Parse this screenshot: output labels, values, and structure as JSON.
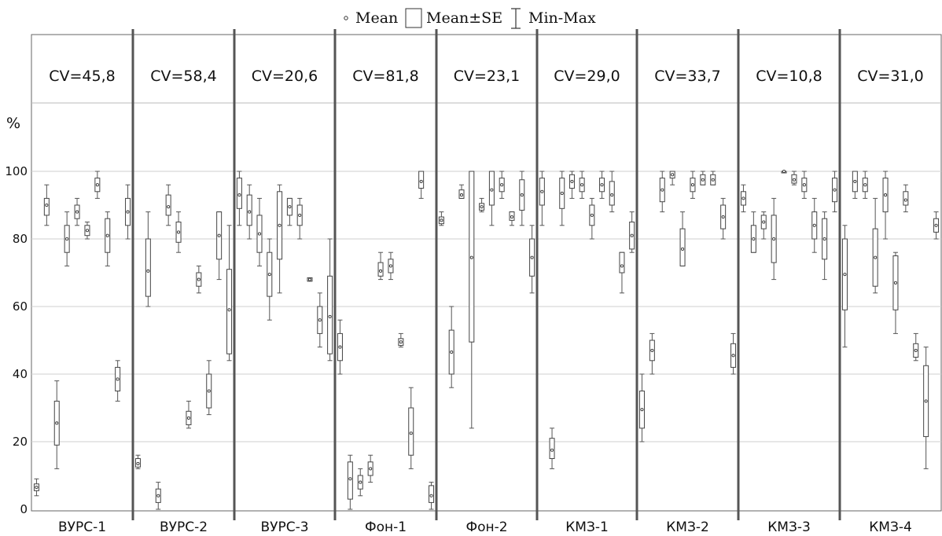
{
  "chart_data": {
    "type": "boxplot",
    "legend": {
      "mean_label": "Mean",
      "se_label": "Mean±SE",
      "minmax_label": "Min-Max",
      "placement": "top-center"
    },
    "y_unit_label": "%",
    "yticks": [
      "0",
      "20",
      "40",
      "60",
      "80",
      "100"
    ],
    "ylim": [
      0,
      120
    ],
    "grid": true,
    "groups": [
      {
        "name": "ВУРС-1",
        "cv": "CV=45,8",
        "boxes": [
          {
            "mean": 6.5,
            "se_low": 5.5,
            "se_high": 7.5,
            "min": 4,
            "max": 9
          },
          {
            "mean": 90,
            "se_low": 87,
            "se_high": 92,
            "min": 84,
            "max": 96
          },
          {
            "mean": 25.5,
            "se_low": 19,
            "se_high": 32,
            "min": 12,
            "max": 38
          },
          {
            "mean": 80,
            "se_low": 76,
            "se_high": 84,
            "min": 72,
            "max": 88
          },
          {
            "mean": 88,
            "se_low": 86,
            "se_high": 90,
            "min": 84,
            "max": 92
          },
          {
            "mean": 82.5,
            "se_low": 81,
            "se_high": 84,
            "min": 80,
            "max": 85
          },
          {
            "mean": 96,
            "se_low": 94,
            "se_high": 98,
            "min": 92,
            "max": 100
          },
          {
            "mean": 81,
            "se_low": 76,
            "se_high": 86,
            "min": 72,
            "max": 88
          },
          {
            "mean": 38.5,
            "se_low": 35,
            "se_high": 42,
            "min": 32,
            "max": 44
          },
          {
            "mean": 88,
            "se_low": 84,
            "se_high": 92,
            "min": 80,
            "max": 96
          }
        ]
      },
      {
        "name": "ВУРС-2",
        "cv": "CV=58,4",
        "boxes": [
          {
            "mean": 13.5,
            "se_low": 12.5,
            "se_high": 15,
            "min": 12,
            "max": 16
          },
          {
            "mean": 70.5,
            "se_low": 63,
            "se_high": 80,
            "min": 60,
            "max": 88
          },
          {
            "mean": 4,
            "se_low": 2,
            "se_high": 6,
            "min": 0,
            "max": 8
          },
          {
            "mean": 89.5,
            "se_low": 87,
            "se_high": 93,
            "min": 84,
            "max": 96
          },
          {
            "mean": 82,
            "se_low": 79,
            "se_high": 85,
            "min": 76,
            "max": 88
          },
          {
            "mean": 27,
            "se_low": 25,
            "se_high": 29,
            "min": 24,
            "max": 32
          },
          {
            "mean": 68,
            "se_low": 66,
            "se_high": 70,
            "min": 64,
            "max": 72
          },
          {
            "mean": 35,
            "se_low": 30,
            "se_high": 40,
            "min": 28,
            "max": 44
          },
          {
            "mean": 81,
            "se_low": 74,
            "se_high": 88,
            "min": 68,
            "max": 88
          },
          {
            "mean": 59,
            "se_low": 46,
            "se_high": 71,
            "min": 44,
            "max": 84
          }
        ]
      },
      {
        "name": "ВУРС-3",
        "cv": "CV=20,6",
        "boxes": [
          {
            "mean": 93,
            "se_low": 89,
            "se_high": 98,
            "min": 84,
            "max": 100
          },
          {
            "mean": 88,
            "se_low": 84,
            "se_high": 93,
            "min": 80,
            "max": 96
          },
          {
            "mean": 81.5,
            "se_low": 76,
            "se_high": 87,
            "min": 72,
            "max": 92
          },
          {
            "mean": 69.5,
            "se_low": 63,
            "se_high": 76,
            "min": 56,
            "max": 80
          },
          {
            "mean": 84,
            "se_low": 74,
            "se_high": 94,
            "min": 64,
            "max": 96
          },
          {
            "mean": 89.5,
            "se_low": 87,
            "se_high": 92,
            "min": 84,
            "max": 92
          },
          {
            "mean": 87,
            "se_low": 84,
            "se_high": 90,
            "min": 80,
            "max": 92
          },
          {
            "mean": 68,
            "se_low": 67.5,
            "se_high": 68.5,
            "min": 67.5,
            "max": 68.5
          },
          {
            "mean": 56,
            "se_low": 52,
            "se_high": 60,
            "min": 48,
            "max": 64
          },
          {
            "mean": 57,
            "se_low": 46,
            "se_high": 69,
            "min": 44,
            "max": 80
          }
        ]
      },
      {
        "name": "Фон-1",
        "cv": "CV=81,8",
        "boxes": [
          {
            "mean": 48,
            "se_low": 44,
            "se_high": 52,
            "min": 40,
            "max": 56
          },
          {
            "mean": 9,
            "se_low": 3,
            "se_high": 14,
            "min": 0,
            "max": 16
          },
          {
            "mean": 8,
            "se_low": 6,
            "se_high": 10,
            "min": 4,
            "max": 12
          },
          {
            "mean": 12,
            "se_low": 10,
            "se_high": 14,
            "min": 8,
            "max": 16
          },
          {
            "mean": 70.5,
            "se_low": 69,
            "se_high": 73,
            "min": 68,
            "max": 76
          },
          {
            "mean": 72,
            "se_low": 70,
            "se_high": 74,
            "min": 68,
            "max": 76
          },
          {
            "mean": 49.5,
            "se_low": 48.5,
            "se_high": 50.5,
            "min": 48,
            "max": 52
          },
          {
            "mean": 22.5,
            "se_low": 16,
            "se_high": 30,
            "min": 12,
            "max": 36
          },
          {
            "mean": 97,
            "se_low": 95,
            "se_high": 100,
            "min": 92,
            "max": 100
          },
          {
            "mean": 4,
            "se_low": 2,
            "se_high": 7,
            "min": 0,
            "max": 8
          }
        ]
      },
      {
        "name": "Фон-2",
        "cv": "CV=23,1",
        "boxes": [
          {
            "mean": 85.5,
            "se_low": 84.5,
            "se_high": 86.5,
            "min": 84,
            "max": 88
          },
          {
            "mean": 46.5,
            "se_low": 40,
            "se_high": 53,
            "min": 36,
            "max": 60
          },
          {
            "mean": 93,
            "se_low": 92,
            "se_high": 94.5,
            "min": 92,
            "max": 96
          },
          {
            "mean": 74.5,
            "se_low": 49.5,
            "se_high": 100,
            "min": 24,
            "max": 100
          },
          {
            "mean": 89.5,
            "se_low": 88.5,
            "se_high": 90.5,
            "min": 88,
            "max": 92
          },
          {
            "mean": 94.5,
            "se_low": 90,
            "se_high": 100,
            "min": 84,
            "max": 100
          },
          {
            "mean": 96,
            "se_low": 94,
            "se_high": 98,
            "min": 92,
            "max": 100
          },
          {
            "mean": 86.5,
            "se_low": 85.5,
            "se_high": 88,
            "min": 84,
            "max": 88
          },
          {
            "mean": 93,
            "se_low": 88.5,
            "se_high": 97.5,
            "min": 84,
            "max": 100
          },
          {
            "mean": 74.5,
            "se_low": 69,
            "se_high": 80,
            "min": 64,
            "max": 84
          }
        ]
      },
      {
        "name": "КМЗ-1",
        "cv": "CV=29,0",
        "boxes": [
          {
            "mean": 94,
            "se_low": 90,
            "se_high": 98,
            "min": 84,
            "max": 100
          },
          {
            "mean": 17.5,
            "se_low": 15,
            "se_high": 21,
            "min": 12,
            "max": 24
          },
          {
            "mean": 93.5,
            "se_low": 89,
            "se_high": 98,
            "min": 84,
            "max": 100
          },
          {
            "mean": 97,
            "se_low": 95,
            "se_high": 99,
            "min": 92,
            "max": 100
          },
          {
            "mean": 96,
            "se_low": 94,
            "se_high": 98,
            "min": 92,
            "max": 100
          },
          {
            "mean": 87,
            "se_low": 84,
            "se_high": 90,
            "min": 80,
            "max": 92
          },
          {
            "mean": 96,
            "se_low": 94,
            "se_high": 98,
            "min": 92,
            "max": 100
          },
          {
            "mean": 93,
            "se_low": 90,
            "se_high": 97,
            "min": 88,
            "max": 100
          },
          {
            "mean": 72,
            "se_low": 70,
            "se_high": 76,
            "min": 64,
            "max": 76
          },
          {
            "mean": 81,
            "se_low": 77,
            "se_high": 85,
            "min": 76,
            "max": 88
          }
        ]
      },
      {
        "name": "КМЗ-2",
        "cv": "CV=33,7",
        "boxes": [
          {
            "mean": 29.5,
            "se_low": 24,
            "se_high": 35,
            "min": 20,
            "max": 40
          },
          {
            "mean": 47,
            "se_low": 44,
            "se_high": 50,
            "min": 40,
            "max": 52
          },
          {
            "mean": 94.5,
            "se_low": 91,
            "se_high": 98,
            "min": 88,
            "max": 100
          },
          {
            "mean": 99,
            "se_low": 98,
            "se_high": 100,
            "min": 96,
            "max": 100
          },
          {
            "mean": 77,
            "se_low": 72,
            "se_high": 83,
            "min": 72,
            "max": 88
          },
          {
            "mean": 96,
            "se_low": 94,
            "se_high": 98,
            "min": 92,
            "max": 100
          },
          {
            "mean": 97.5,
            "se_low": 96,
            "se_high": 99,
            "min": 96,
            "max": 100
          },
          {
            "mean": 97.5,
            "se_low": 96,
            "se_high": 99,
            "min": 96,
            "max": 100
          },
          {
            "mean": 86.5,
            "se_low": 83,
            "se_high": 90,
            "min": 80,
            "max": 92
          },
          {
            "mean": 45.5,
            "se_low": 42,
            "se_high": 49,
            "min": 40,
            "max": 52
          }
        ]
      },
      {
        "name": "КМЗ-3",
        "cv": "CV=10,8",
        "boxes": [
          {
            "mean": 92,
            "se_low": 90,
            "se_high": 94,
            "min": 88,
            "max": 96
          },
          {
            "mean": 80,
            "se_low": 76,
            "se_high": 84,
            "min": 76,
            "max": 88
          },
          {
            "mean": 85,
            "se_low": 83,
            "se_high": 87,
            "min": 80,
            "max": 88
          },
          {
            "mean": 80,
            "se_low": 73,
            "se_high": 87,
            "min": 68,
            "max": 92
          },
          {
            "mean": 100,
            "se_low": 99.7,
            "se_high": 100,
            "min": 99.7,
            "max": 100
          },
          {
            "mean": 97.5,
            "se_low": 96.5,
            "se_high": 99,
            "min": 96,
            "max": 100
          },
          {
            "mean": 96,
            "se_low": 94,
            "se_high": 98,
            "min": 92,
            "max": 100
          },
          {
            "mean": 84,
            "se_low": 80,
            "se_high": 88,
            "min": 76,
            "max": 92
          },
          {
            "mean": 80,
            "se_low": 74,
            "se_high": 86,
            "min": 68,
            "max": 88
          },
          {
            "mean": 94.5,
            "se_low": 91,
            "se_high": 98,
            "min": 88,
            "max": 100
          }
        ]
      },
      {
        "name": "КМЗ-4",
        "cv": "CV=31,0",
        "boxes": [
          {
            "mean": 69.5,
            "se_low": 59,
            "se_high": 80,
            "min": 48,
            "max": 84
          },
          {
            "mean": 97,
            "se_low": 94,
            "se_high": 100,
            "min": 92,
            "max": 100
          },
          {
            "mean": 96,
            "se_low": 94,
            "se_high": 98,
            "min": 92,
            "max": 100
          },
          {
            "mean": 74.5,
            "se_low": 66,
            "se_high": 83,
            "min": 64,
            "max": 92
          },
          {
            "mean": 93,
            "se_low": 88,
            "se_high": 98,
            "min": 80,
            "max": 100
          },
          {
            "mean": 67,
            "se_low": 59,
            "se_high": 75,
            "min": 52,
            "max": 76
          },
          {
            "mean": 91.5,
            "se_low": 90,
            "se_high": 94,
            "min": 88,
            "max": 96
          },
          {
            "mean": 47,
            "se_low": 45,
            "se_high": 49,
            "min": 44,
            "max": 52
          },
          {
            "mean": 32,
            "se_low": 21.5,
            "se_high": 42.5,
            "min": 12,
            "max": 48
          },
          {
            "mean": 84,
            "se_low": 82,
            "se_high": 86,
            "min": 80,
            "max": 88
          }
        ]
      }
    ]
  }
}
